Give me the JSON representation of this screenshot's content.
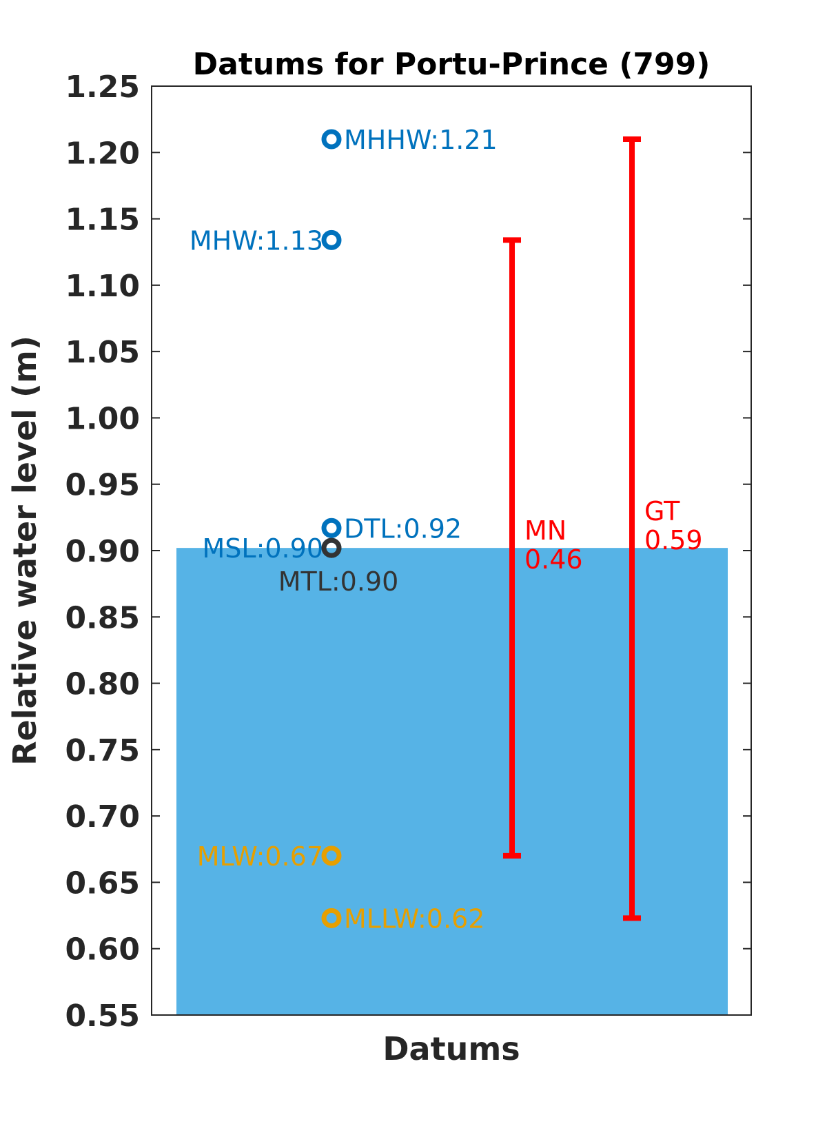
{
  "chart_data": {
    "type": "scatter",
    "title": "Datums for Portu-Prince (799)",
    "xlabel": "Datums",
    "ylabel": "Relative water level (m)",
    "ylim": [
      0.55,
      1.25
    ],
    "yticks": [
      "0.55",
      "0.60",
      "0.65",
      "0.70",
      "0.75",
      "0.80",
      "0.85",
      "0.90",
      "0.95",
      "1.00",
      "1.05",
      "1.10",
      "1.15",
      "1.20",
      "1.25"
    ],
    "grid": false,
    "mean_sea_level_fill": {
      "value": 0.902,
      "color": "#56B3E6"
    },
    "datums": [
      {
        "name": "MHHW",
        "value": 1.21,
        "label": "MHHW:1.21",
        "color": "#0072BD",
        "label_side": "right"
      },
      {
        "name": "MHW",
        "value": 1.134,
        "label": "MHW:1.13",
        "color": "#0072BD",
        "label_side": "left"
      },
      {
        "name": "DTL",
        "value": 0.917,
        "label": "DTL:0.92",
        "color": "#0072BD",
        "label_side": "right"
      },
      {
        "name": "MSL",
        "value": 0.902,
        "label": "MSL:0.90",
        "color": "#0072BD",
        "label_side": "left"
      },
      {
        "name": "MTL",
        "value": 0.902,
        "label": "MTL:0.90",
        "color": "#333333",
        "label_side": "below"
      },
      {
        "name": "MLW",
        "value": 0.67,
        "label": "MLW:0.67",
        "color": "#E69F00",
        "label_side": "left"
      },
      {
        "name": "MLLW",
        "value": 0.623,
        "label": "MLLW:0.62",
        "color": "#E69F00",
        "label_side": "right"
      }
    ],
    "ranges": [
      {
        "name": "MN",
        "low": 0.67,
        "high": 1.134,
        "label_name": "MN",
        "label_value": "0.46",
        "color": "#FF0000"
      },
      {
        "name": "GT",
        "low": 0.623,
        "high": 1.21,
        "label_name": "GT",
        "label_value": "0.59",
        "color": "#FF0000"
      }
    ]
  }
}
